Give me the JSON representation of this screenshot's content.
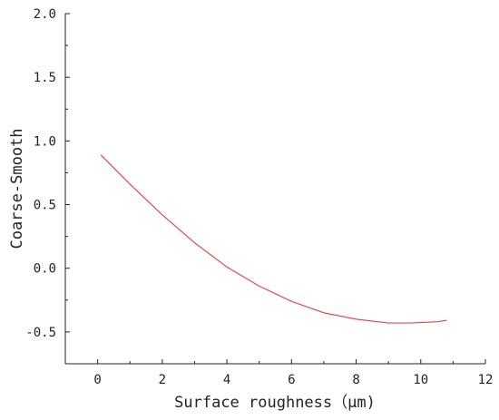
{
  "chart_data": {
    "type": "line",
    "title": "",
    "xlabel": "Surface roughness（μm)",
    "ylabel": "Coarse-Smooth",
    "xlim": [
      -1,
      12
    ],
    "ylim": [
      -0.75,
      2.0
    ],
    "grid": false,
    "x_ticks": [
      0,
      2,
      4,
      6,
      8,
      10,
      12
    ],
    "x_tick_labels": [
      "0",
      "2",
      "4",
      "6",
      "8",
      "10",
      "12"
    ],
    "y_ticks": [
      -0.5,
      0.0,
      0.5,
      1.0,
      1.5,
      2.0
    ],
    "y_tick_labels": [
      "-0.5",
      "0.0",
      "0.5",
      "1.0",
      "1.5",
      "2.0"
    ],
    "series": [
      {
        "color": "#e8474c",
        "x": [
          0.1,
          1,
          2,
          3,
          4,
          5,
          6,
          7,
          8,
          9,
          9.7,
          10.5,
          10.8
        ],
        "y": [
          0.89,
          0.66,
          0.42,
          0.2,
          0.01,
          -0.14,
          -0.26,
          -0.35,
          -0.4,
          -0.43,
          -0.43,
          -0.42,
          -0.41
        ]
      }
    ]
  }
}
